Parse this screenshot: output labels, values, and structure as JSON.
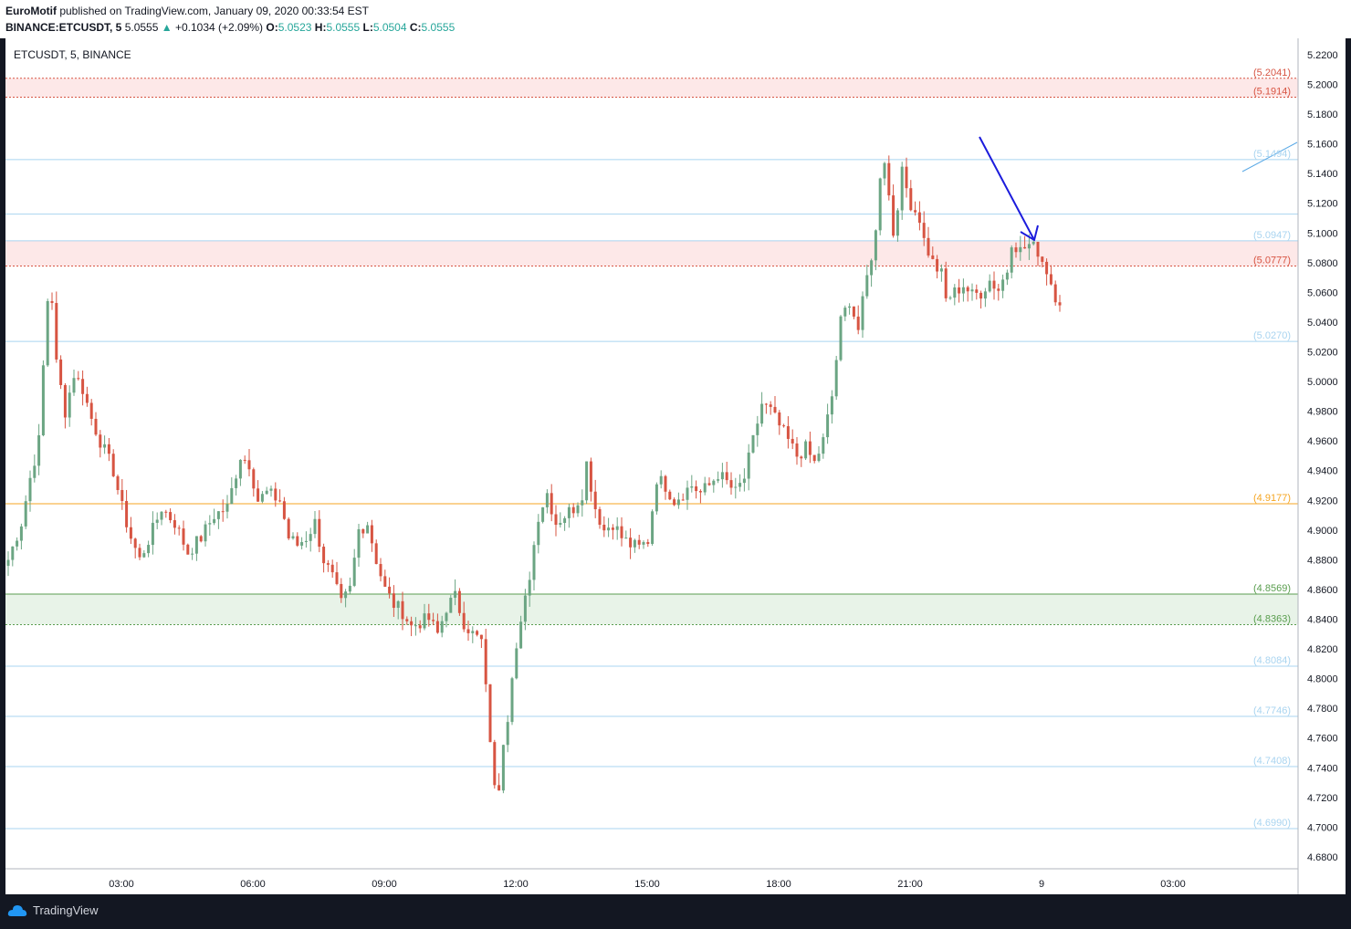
{
  "header": {
    "author": "EuroMotif",
    "published_text": " published on TradingView.com, January 09, 2020 00:33:54 EST",
    "symbol_line": "BINANCE:ETCUSDT, 5",
    "last_price": "5.0555",
    "change": "+0.1034 (+2.09%)",
    "o_label": "O:",
    "o_value": "5.0523",
    "h_label": "H:",
    "h_value": "5.0555",
    "l_label": "L:",
    "l_value": "5.0504",
    "c_label": "C:",
    "c_value": "5.0555"
  },
  "chart_title": "ETCUSDT, 5, BINANCE",
  "footer": {
    "brand": "TradingView"
  },
  "colors": {
    "up": "#6ba583",
    "down": "#d75442",
    "grid_level": "#a9d4f0",
    "resistance": "#d75442",
    "support": "#5a9e4f",
    "pivot": "#f5a623",
    "zone_red": "#fde8e8",
    "zone_green": "#e8f3e8",
    "arrow": "#1c1cdc",
    "trendline": "#5aa9e6"
  },
  "chart_data": {
    "type": "candlestick",
    "ylim": [
      4.672,
      5.231
    ],
    "y_ticks": [
      "5.2200",
      "5.2000",
      "5.1800",
      "5.1600",
      "5.1400",
      "5.1200",
      "5.1000",
      "5.0800",
      "5.0600",
      "5.0400",
      "5.0200",
      "5.0000",
      "4.9800",
      "4.9600",
      "4.9400",
      "4.9200",
      "4.9000",
      "4.8800",
      "4.8600",
      "4.8400",
      "4.8200",
      "4.8000",
      "4.7800",
      "4.7600",
      "4.7400",
      "4.7200",
      "4.7000",
      "4.6800"
    ],
    "x_ticks": [
      "03:00",
      "06:00",
      "09:00",
      "12:00",
      "15:00",
      "18:00",
      "21:00",
      "9",
      "03:00"
    ],
    "levels": [
      {
        "value": 5.2041,
        "label": "(5.2041)",
        "kind": "resistance",
        "style": "dotted"
      },
      {
        "value": 5.1914,
        "label": "(5.1914)",
        "kind": "resistance",
        "style": "dotted"
      },
      {
        "value": 5.1494,
        "label": "(5.1494)",
        "kind": "grid",
        "style": "solid"
      },
      {
        "value": 5.1127,
        "label": "",
        "kind": "grid",
        "style": "solid"
      },
      {
        "value": 5.0947,
        "label": "(5.0947)",
        "kind": "grid",
        "style": "solid"
      },
      {
        "value": 5.0777,
        "label": "(5.0777)",
        "kind": "resistance",
        "style": "dotted"
      },
      {
        "value": 5.027,
        "label": "(5.0270)",
        "kind": "grid",
        "style": "solid"
      },
      {
        "value": 4.9177,
        "label": "(4.9177)",
        "kind": "pivot",
        "style": "solid"
      },
      {
        "value": 4.8569,
        "label": "(4.8569)",
        "kind": "support",
        "style": "solid"
      },
      {
        "value": 4.8363,
        "label": "(4.8363)",
        "kind": "support",
        "style": "dotted"
      },
      {
        "value": 4.8084,
        "label": "(4.8084)",
        "kind": "grid",
        "style": "solid"
      },
      {
        "value": 4.7746,
        "label": "(4.7746)",
        "kind": "grid",
        "style": "solid"
      },
      {
        "value": 4.7408,
        "label": "(4.7408)",
        "kind": "grid",
        "style": "solid"
      },
      {
        "value": 4.699,
        "label": "(4.6990)",
        "kind": "grid",
        "style": "solid"
      }
    ],
    "zones": [
      {
        "from": 5.1914,
        "to": 5.2041,
        "kind": "resistance"
      },
      {
        "from": 5.0777,
        "to": 5.0947,
        "kind": "resistance"
      },
      {
        "from": 4.8363,
        "to": 4.8569,
        "kind": "support"
      }
    ],
    "waypoints": [
      [
        0,
        4.88
      ],
      [
        3,
        4.905
      ],
      [
        5,
        4.935
      ],
      [
        7,
        4.96
      ],
      [
        8,
        5.01
      ],
      [
        9,
        5.055
      ],
      [
        10,
        5.055
      ],
      [
        11,
        5.012
      ],
      [
        13,
        4.98
      ],
      [
        15,
        5.005
      ],
      [
        17,
        4.995
      ],
      [
        19,
        4.975
      ],
      [
        21,
        4.96
      ],
      [
        24,
        4.94
      ],
      [
        26,
        4.915
      ],
      [
        28,
        4.895
      ],
      [
        30,
        4.88
      ],
      [
        33,
        4.9
      ],
      [
        35,
        4.915
      ],
      [
        38,
        4.905
      ],
      [
        41,
        4.885
      ],
      [
        44,
        4.895
      ],
      [
        47,
        4.91
      ],
      [
        50,
        4.915
      ],
      [
        53,
        4.95
      ],
      [
        55,
        4.945
      ],
      [
        57,
        4.92
      ],
      [
        59,
        4.925
      ],
      [
        62,
        4.92
      ],
      [
        64,
        4.895
      ],
      [
        66,
        4.89
      ],
      [
        68,
        4.895
      ],
      [
        70,
        4.905
      ],
      [
        72,
        4.88
      ],
      [
        74,
        4.868
      ],
      [
        76,
        4.85
      ],
      [
        78,
        4.86
      ],
      [
        80,
        4.9
      ],
      [
        82,
        4.905
      ],
      [
        84,
        4.88
      ],
      [
        86,
        4.86
      ],
      [
        88,
        4.85
      ],
      [
        90,
        4.845
      ],
      [
        92,
        4.835
      ],
      [
        94,
        4.838
      ],
      [
        96,
        4.84
      ],
      [
        98,
        4.83
      ],
      [
        100,
        4.848
      ],
      [
        102,
        4.855
      ],
      [
        104,
        4.838
      ],
      [
        106,
        4.83
      ],
      [
        108,
        4.825
      ],
      [
        110,
        4.76
      ],
      [
        111,
        4.725
      ],
      [
        112,
        4.728
      ],
      [
        113,
        4.76
      ],
      [
        114,
        4.775
      ],
      [
        115,
        4.805
      ],
      [
        117,
        4.835
      ],
      [
        119,
        4.87
      ],
      [
        121,
        4.91
      ],
      [
        123,
        4.925
      ],
      [
        125,
        4.905
      ],
      [
        127,
        4.91
      ],
      [
        129,
        4.915
      ],
      [
        131,
        4.925
      ],
      [
        132,
        4.945
      ],
      [
        134,
        4.915
      ],
      [
        136,
        4.9
      ],
      [
        138,
        4.905
      ],
      [
        140,
        4.895
      ],
      [
        142,
        4.89
      ],
      [
        144,
        4.888
      ],
      [
        146,
        4.893
      ],
      [
        148,
        4.935
      ],
      [
        150,
        4.93
      ],
      [
        152,
        4.92
      ],
      [
        154,
        4.925
      ],
      [
        156,
        4.93
      ],
      [
        158,
        4.925
      ],
      [
        160,
        4.93
      ],
      [
        162,
        4.938
      ],
      [
        164,
        4.932
      ],
      [
        166,
        4.925
      ],
      [
        168,
        4.935
      ],
      [
        170,
        4.96
      ],
      [
        172,
        4.985
      ],
      [
        174,
        4.98
      ],
      [
        176,
        4.97
      ],
      [
        178,
        4.96
      ],
      [
        180,
        4.95
      ],
      [
        182,
        4.955
      ],
      [
        184,
        4.945
      ],
      [
        186,
        4.96
      ],
      [
        188,
        4.99
      ],
      [
        190,
        5.04
      ],
      [
        192,
        5.055
      ],
      [
        194,
        5.035
      ],
      [
        196,
        5.07
      ],
      [
        198,
        5.1
      ],
      [
        199,
        5.14
      ],
      [
        200,
        5.15
      ],
      [
        201,
        5.125
      ],
      [
        202,
        5.1
      ],
      [
        203,
        5.12
      ],
      [
        204,
        5.14
      ],
      [
        206,
        5.12
      ],
      [
        208,
        5.11
      ],
      [
        209,
        5.095
      ],
      [
        211,
        5.08
      ],
      [
        213,
        5.072
      ],
      [
        214,
        5.055
      ],
      [
        216,
        5.06
      ],
      [
        218,
        5.065
      ],
      [
        220,
        5.058
      ],
      [
        222,
        5.06
      ],
      [
        224,
        5.068
      ],
      [
        226,
        5.062
      ],
      [
        228,
        5.075
      ],
      [
        229,
        5.095
      ],
      [
        231,
        5.088
      ],
      [
        233,
        5.092
      ],
      [
        235,
        5.088
      ],
      [
        237,
        5.075
      ],
      [
        239,
        5.058
      ],
      [
        240,
        5.055
      ]
    ]
  }
}
